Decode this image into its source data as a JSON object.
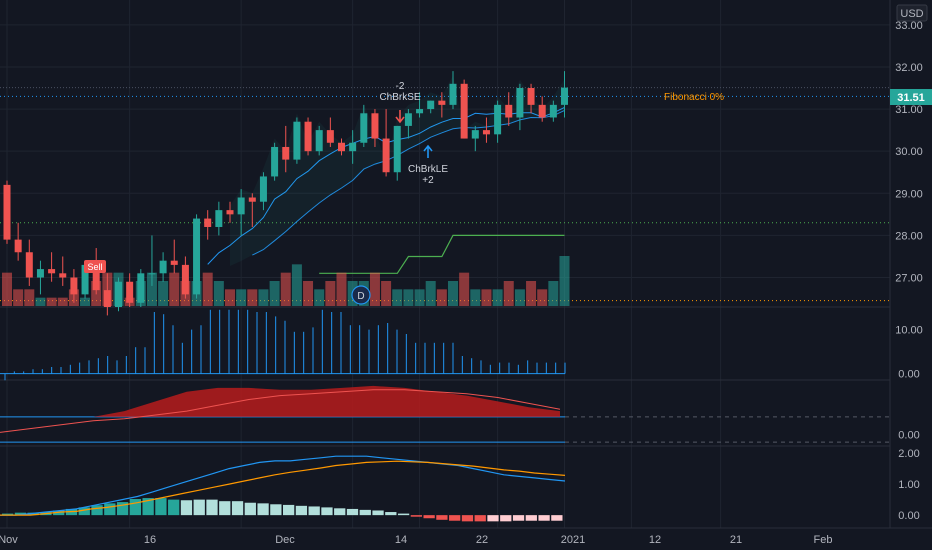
{
  "currency": "USD",
  "last_price": "31.51",
  "fib_label": "Fibonacci 0%",
  "signals": {
    "sell": "Sell",
    "short_qty": "-2",
    "short_name": "ChBrkSE",
    "long_name": "ChBrkLE",
    "long_qty": "+2",
    "dividend": "D"
  },
  "x_ticks": [
    {
      "label": "Nov",
      "pos": 0
    },
    {
      "label": "16",
      "pos": 11
    },
    {
      "label": "Dec",
      "pos": 21
    },
    {
      "label": "14",
      "pos": 31
    },
    {
      "label": "22",
      "pos": 37
    },
    {
      "label": "2021",
      "pos": 44
    },
    {
      "label": "12",
      "pos": 50
    },
    {
      "label": "21",
      "pos": 56
    },
    {
      "label": "Feb",
      "pos": 64
    }
  ],
  "chart_data": [
    {
      "type": "candlestick",
      "price_ticks": [
        27.0,
        28.0,
        29.0,
        30.0,
        31.0,
        32.0,
        33.0
      ],
      "ylim": [
        26.3,
        33.4
      ],
      "ohlc": [
        [
          29.2,
          29.3,
          27.8,
          27.9
        ],
        [
          27.9,
          28.3,
          27.4,
          27.6
        ],
        [
          27.6,
          27.9,
          26.8,
          27.0
        ],
        [
          27.0,
          27.4,
          26.6,
          27.2
        ],
        [
          27.2,
          27.6,
          26.9,
          27.1
        ],
        [
          27.1,
          27.5,
          26.8,
          27.0
        ],
        [
          27.0,
          27.2,
          26.4,
          26.6
        ],
        [
          26.6,
          27.4,
          26.5,
          27.3
        ],
        [
          27.3,
          27.7,
          26.6,
          26.7
        ],
        [
          26.7,
          27.1,
          26.1,
          26.3
        ],
        [
          26.3,
          27.0,
          26.2,
          26.9
        ],
        [
          26.9,
          27.1,
          26.3,
          26.4
        ],
        [
          26.4,
          27.2,
          26.3,
          27.1
        ],
        [
          27.1,
          28.0,
          26.8,
          27.1
        ],
        [
          27.1,
          27.6,
          26.9,
          27.4
        ],
        [
          27.4,
          27.9,
          27.1,
          27.3
        ],
        [
          27.3,
          27.5,
          26.5,
          26.6
        ],
        [
          26.6,
          28.5,
          26.5,
          28.4
        ],
        [
          28.4,
          28.6,
          27.9,
          28.2
        ],
        [
          28.2,
          28.8,
          28.0,
          28.6
        ],
        [
          28.6,
          28.8,
          28.3,
          28.5
        ],
        [
          28.5,
          29.1,
          28.0,
          28.9
        ],
        [
          28.9,
          29.0,
          28.2,
          28.8
        ],
        [
          28.8,
          29.5,
          28.6,
          29.4
        ],
        [
          29.4,
          30.2,
          29.3,
          30.1
        ],
        [
          30.1,
          30.6,
          29.5,
          29.8
        ],
        [
          29.8,
          30.8,
          29.7,
          30.7
        ],
        [
          30.7,
          30.8,
          29.9,
          30.0
        ],
        [
          30.0,
          30.6,
          29.9,
          30.5
        ],
        [
          30.5,
          30.8,
          30.1,
          30.2
        ],
        [
          30.2,
          30.3,
          29.9,
          30.0
        ],
        [
          30.0,
          30.5,
          29.7,
          30.2
        ],
        [
          30.2,
          31.1,
          30.1,
          30.9
        ],
        [
          30.9,
          31.0,
          30.1,
          30.3
        ],
        [
          30.3,
          31.0,
          29.4,
          29.5
        ],
        [
          29.5,
          30.6,
          29.3,
          30.6
        ],
        [
          30.6,
          31.0,
          30.3,
          30.9
        ],
        [
          30.9,
          31.4,
          30.8,
          31.0
        ],
        [
          31.0,
          31.2,
          30.9,
          31.2
        ],
        [
          31.2,
          31.4,
          30.8,
          31.1
        ],
        [
          31.1,
          31.9,
          31.0,
          31.6
        ],
        [
          31.6,
          31.7,
          30.3,
          30.3
        ],
        [
          30.3,
          30.6,
          30.0,
          30.5
        ],
        [
          30.5,
          30.8,
          30.2,
          30.4
        ],
        [
          30.4,
          31.2,
          30.2,
          31.1
        ],
        [
          31.1,
          31.4,
          30.6,
          30.8
        ],
        [
          30.8,
          31.6,
          30.5,
          31.5
        ],
        [
          31.5,
          31.6,
          30.9,
          31.1
        ],
        [
          31.1,
          31.3,
          30.7,
          30.8
        ],
        [
          30.8,
          31.2,
          30.7,
          31.1
        ],
        [
          31.1,
          31.9,
          30.8,
          31.51
        ]
      ],
      "volume": [
        4,
        2,
        2,
        1,
        1,
        1,
        2,
        1,
        3,
        4,
        4,
        1,
        3,
        4,
        3,
        4,
        3,
        3,
        4,
        3,
        2,
        2,
        2,
        2,
        3,
        4,
        5,
        3,
        2,
        3,
        4,
        3,
        3,
        4,
        3,
        2,
        2,
        2,
        3,
        2,
        3,
        4,
        2,
        2,
        2,
        3,
        2,
        3,
        2,
        3,
        6
      ]
    },
    {
      "type": "histogram",
      "ticks": [
        0.0,
        10.0
      ],
      "ylim": [
        -1.0,
        14.0
      ],
      "values": [
        -1.5,
        0.5,
        0.5,
        1.0,
        1.0,
        1.5,
        1.5,
        2.0,
        2.5,
        3.0,
        3.5,
        4.0,
        3.0,
        4.0,
        6.0,
        6.0,
        14.0,
        13.5,
        11.0,
        7.0,
        10.0,
        11.0,
        14.5,
        14.5,
        14.5,
        14.5,
        14.5,
        14.0,
        14.0,
        13.0,
        12.0,
        9.5,
        9.5,
        10.5,
        14.5,
        14.0,
        14.0,
        11.0,
        11.0,
        10.0,
        11.0,
        11.5,
        10.0,
        9.0,
        7.0,
        7.0,
        7.0,
        7.0,
        7.0,
        4.0,
        3.5,
        3.0,
        2.0,
        2.5,
        2.5,
        2.0,
        3.0,
        2.5,
        2.5,
        2.5,
        2.5
      ]
    },
    {
      "type": "area",
      "ticks": [
        0.0
      ],
      "ylim": [
        -0.5,
        2.6
      ],
      "fill_values": [
        0.1,
        0.2,
        0.4,
        0.8,
        1.2,
        1.7,
        2.2,
        2.4,
        2.4,
        2.3,
        2.3,
        2.4,
        2.5,
        2.4,
        2.2,
        2.0,
        1.7,
        1.4,
        1.2
      ],
      "line_values": [
        0.3,
        0.5,
        0.7,
        0.9,
        1.0,
        1.2,
        1.4,
        1.7,
        2.0,
        2.2,
        2.3,
        2.4,
        2.5,
        2.5,
        2.4,
        2.3,
        2.1,
        1.8,
        1.5
      ]
    },
    {
      "type": "line",
      "ticks": [
        0.0,
        1.0,
        2.0
      ],
      "ylim": [
        -0.35,
        2.1
      ],
      "series": [
        {
          "values": [
            0.0,
            0.0,
            0.05,
            0.1,
            0.15,
            0.2,
            0.3,
            0.4,
            0.5,
            0.6,
            0.75,
            0.9,
            1.05,
            1.2,
            1.35,
            1.5,
            1.6,
            1.7,
            1.75,
            1.75,
            1.8,
            1.85,
            1.9,
            1.9,
            1.9,
            1.85,
            1.8,
            1.75,
            1.7,
            1.65,
            1.6,
            1.5,
            1.4,
            1.3,
            1.25,
            1.2,
            1.15,
            1.1
          ],
          "color": "#2196f3"
        },
        {
          "values": [
            0.0,
            0.0,
            0.0,
            0.05,
            0.1,
            0.12,
            0.2,
            0.25,
            0.32,
            0.4,
            0.5,
            0.6,
            0.7,
            0.8,
            0.9,
            1.0,
            1.1,
            1.2,
            1.3,
            1.38,
            1.45,
            1.52,
            1.6,
            1.65,
            1.7,
            1.72,
            1.74,
            1.72,
            1.7,
            1.66,
            1.62,
            1.58,
            1.52,
            1.46,
            1.42,
            1.36,
            1.32,
            1.28
          ],
          "color": "#ff9800"
        }
      ],
      "histogram": [
        0.05,
        0.08,
        0.08,
        0.1,
        0.15,
        0.2,
        0.25,
        0.32,
        0.38,
        0.42,
        0.52,
        0.55,
        0.55,
        0.5,
        0.48,
        0.5,
        0.5,
        0.45,
        0.45,
        0.4,
        0.38,
        0.35,
        0.33,
        0.3,
        0.28,
        0.25,
        0.22,
        0.2,
        0.17,
        0.15,
        0.1,
        0.05,
        -0.05,
        -0.1,
        -0.15,
        -0.18,
        -0.2,
        -0.2,
        -0.2,
        -0.2,
        -0.18,
        -0.18,
        -0.18,
        -0.18
      ]
    }
  ],
  "colors": {
    "bg": "#131722",
    "grid": "#1f2430",
    "up": "#26a69a",
    "down": "#ef5350",
    "text": "#b2b5be",
    "blue": "#2196f3",
    "orange": "#ff9800",
    "green": "#4caf50",
    "price_label_bg": "#26a69a"
  }
}
